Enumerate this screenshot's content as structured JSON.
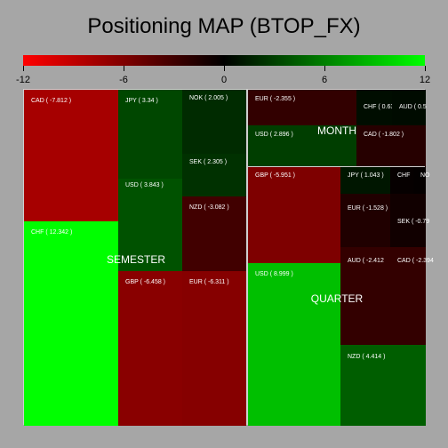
{
  "chart_data": {
    "type": "treemap",
    "title": "Positioning MAP (BTOP_FX)",
    "color_scale": {
      "min": -12,
      "max": 12,
      "ticks": [
        -12,
        -6,
        0,
        6,
        12
      ],
      "colors": [
        "#ff0000",
        "#000000",
        "#00ff00"
      ]
    },
    "groups": [
      {
        "name": "SEMESTER",
        "cells": [
          {
            "label": "CAD ( -7.812 )",
            "value": -7.812
          },
          {
            "label": "CHF ( 12.342 )",
            "value": 12.342
          },
          {
            "label": "JPY ( 3.34 )",
            "value": 3.34
          },
          {
            "label": "USD ( 3.843 )",
            "value": 3.843
          },
          {
            "label": "NOK ( 2.005 )",
            "value": 2.005
          },
          {
            "label": "SEK ( 2.305 )",
            "value": 2.305
          },
          {
            "label": "NZD ( -3.082 )",
            "value": -3.082
          },
          {
            "label": "GBP ( -6.458 )",
            "value": -6.458
          },
          {
            "label": "EUR ( -6.311 )",
            "value": -6.311
          }
        ]
      },
      {
        "name": "MONTH",
        "cells": [
          {
            "label": "EUR ( -2.355 )",
            "value": -2.355
          },
          {
            "label": "USD ( 2.896 )",
            "value": 2.896
          },
          {
            "label": "CHF ( 0.63",
            "value": 0.63
          },
          {
            "label": "AUD ( 0.5",
            "value": 0.5
          },
          {
            "label": "CAD ( -1.802 )",
            "value": -1.802
          }
        ]
      },
      {
        "name": "QUARTER",
        "cells": [
          {
            "label": "GBP ( -5.951 )",
            "value": -5.951
          },
          {
            "label": "USD ( 8.999 )",
            "value": 8.999
          },
          {
            "label": "JPY ( 1.043 )",
            "value": 1.043
          },
          {
            "label": "CHF",
            "value": -0.3
          },
          {
            "label": "NO",
            "value": -0.2
          },
          {
            "label": "EUR ( -1.528 )",
            "value": -1.528
          },
          {
            "label": "SEK ( -0.79",
            "value": -0.79
          },
          {
            "label": "AUD ( -2.412",
            "value": -2.412
          },
          {
            "label": "CAD ( -2.394",
            "value": -2.394
          },
          {
            "label": "NZD ( 4.414 )",
            "value": 4.414
          }
        ]
      }
    ]
  }
}
